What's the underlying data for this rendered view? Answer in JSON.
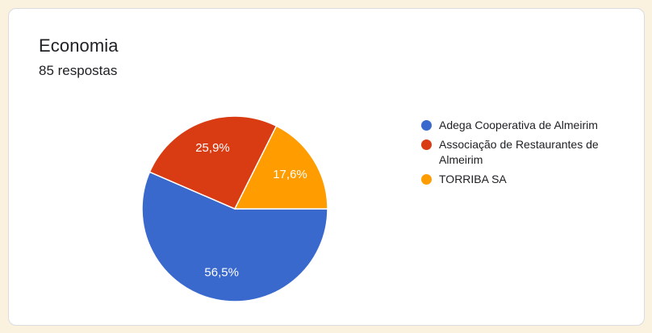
{
  "card": {
    "title": "Economia",
    "subtitle": "85 respostas"
  },
  "colors": {
    "page_bg": "#FAF1DF",
    "card_bg": "#FFFFFF",
    "card_border": "#DADCE0",
    "text": "#202124",
    "slice_label_text": "#FFFFFF"
  },
  "chart_data": {
    "type": "pie",
    "title": "Economia",
    "subtitle": "85 respostas",
    "responses_total": 85,
    "categories": [
      "Adega Cooperativa de Almeirim",
      "Associação de Restaurantes de Almeirim",
      "TORRIBA SA"
    ],
    "values": [
      56.5,
      25.9,
      17.6
    ],
    "value_labels": [
      "56,5%",
      "25,9%",
      "17,6%"
    ],
    "colors": [
      "#3A69CD",
      "#D93B13",
      "#FF9C00"
    ],
    "start_angle_deg": 90,
    "direction": "clockwise",
    "legend_position": "right",
    "label_radius_ratio": 0.7,
    "slice_border_color": "#FFFFFF"
  }
}
